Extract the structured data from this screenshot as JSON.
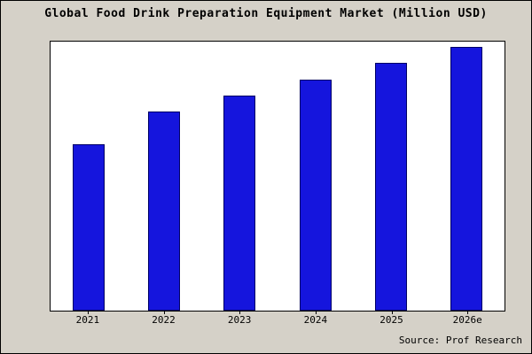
{
  "chart_data": {
    "type": "bar",
    "title": "Global Food Drink Preparation Equipment Market (Million USD)",
    "categories": [
      "2021",
      "2022",
      "2023",
      "2024",
      "2025",
      "2026e"
    ],
    "values": [
      62,
      74,
      80,
      86,
      92,
      98
    ],
    "xlabel": "",
    "ylabel": "",
    "ylim": [
      0,
      100
    ],
    "grid": false,
    "legend_position": "none",
    "bar_color": "#1515dd",
    "bar_edge_color": "#000066",
    "plot_background": "#ffffff",
    "figure_background": "#d5d1c8"
  },
  "source": "Source: Prof Research"
}
